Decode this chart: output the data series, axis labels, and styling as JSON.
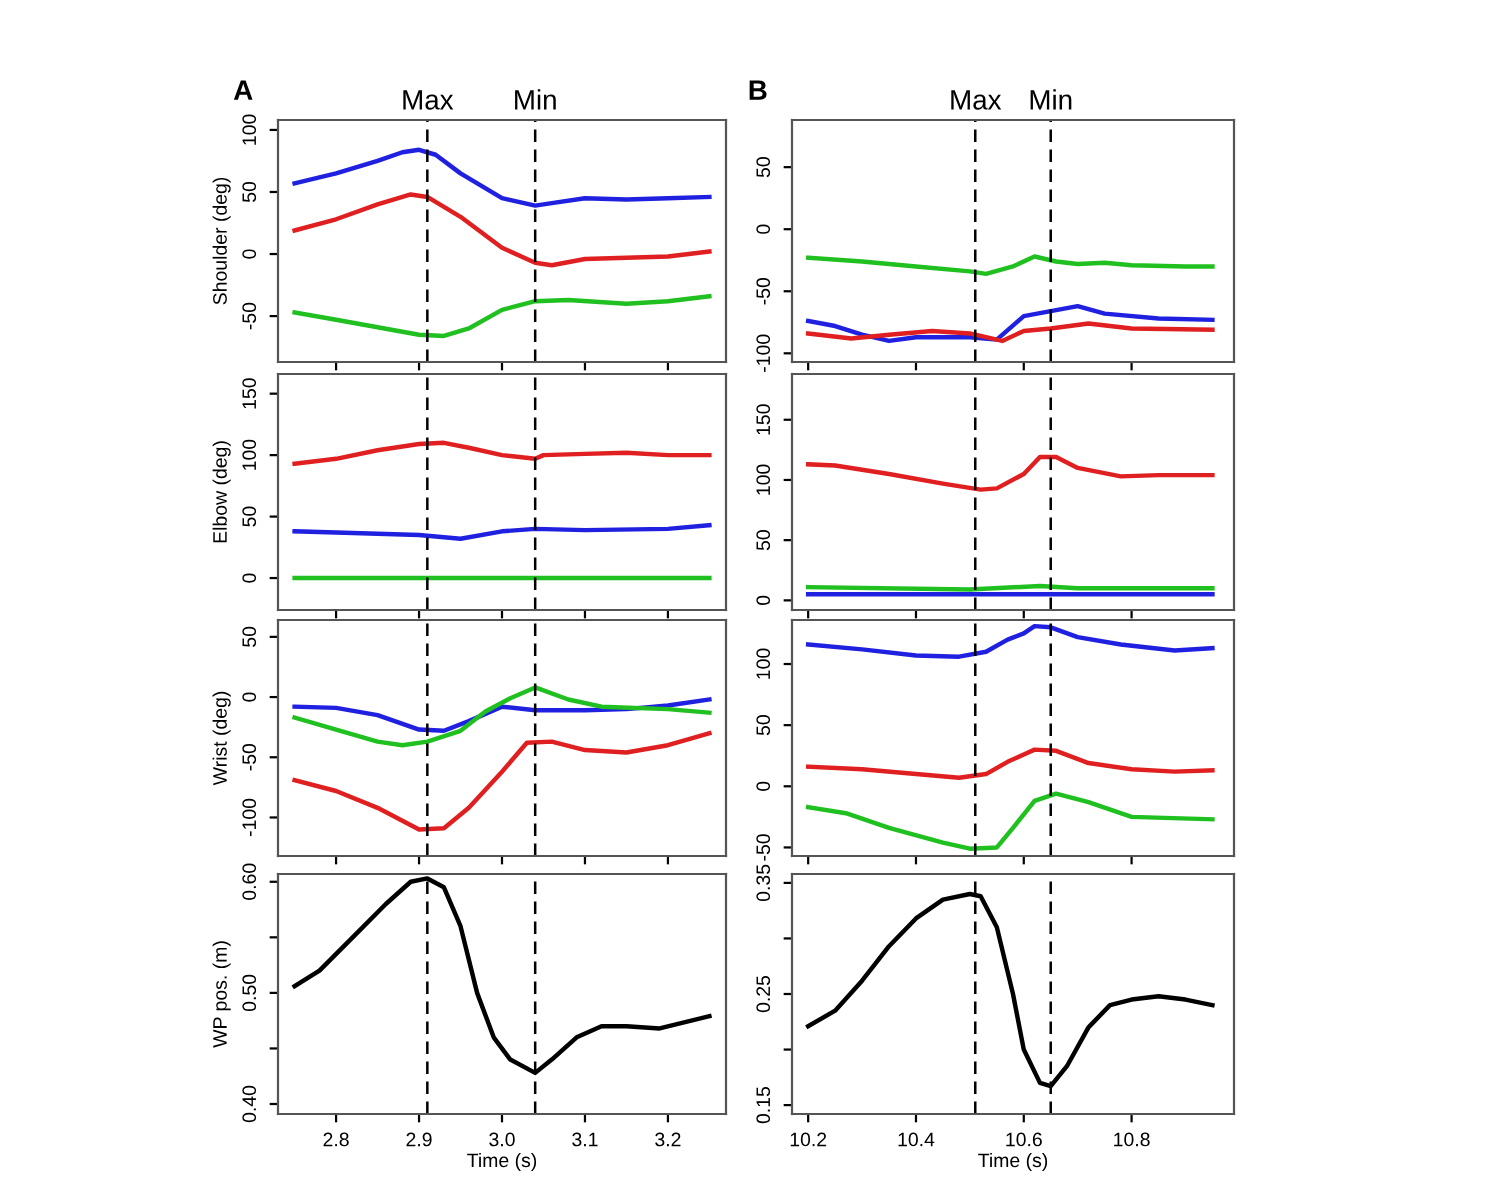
{
  "chart_data": [
    {
      "type": "line",
      "title": "A",
      "ylabel": "Shoulder (deg)",
      "xlim": [
        2.73,
        3.27
      ],
      "xticks": [
        2.8,
        2.9,
        3.0,
        3.1,
        3.2
      ],
      "ylim": [
        -87,
        108
      ],
      "yticks": [
        -50,
        0,
        50,
        100
      ],
      "tick_labels": "y",
      "grid": false,
      "line_style": "solid",
      "ref_lines": [
        {
          "axis": "x",
          "value": 2.91,
          "label": "Max",
          "line_style": "dashed",
          "color": "#000000"
        },
        {
          "axis": "x",
          "value": 3.04,
          "label": "Min",
          "line_style": "dashed",
          "color": "#000000"
        }
      ],
      "series": [
        {
          "color": "#2020e0",
          "x": [
            2.75,
            2.8,
            2.85,
            2.88,
            2.9,
            2.92,
            2.95,
            3.0,
            3.04,
            3.06,
            3.1,
            3.15,
            3.2,
            3.25
          ],
          "values": [
            57,
            65,
            75,
            82,
            84,
            80,
            65,
            45,
            39,
            41,
            45,
            44,
            45,
            46
          ]
        },
        {
          "color": "#e02020",
          "x": [
            2.75,
            2.8,
            2.85,
            2.89,
            2.91,
            2.95,
            3.0,
            3.04,
            3.06,
            3.1,
            3.15,
            3.2,
            3.25
          ],
          "values": [
            19,
            28,
            40,
            48,
            46,
            30,
            5,
            -7,
            -9,
            -4,
            -3,
            -2,
            2
          ]
        },
        {
          "color": "#20c020",
          "x": [
            2.75,
            2.8,
            2.85,
            2.9,
            2.93,
            2.96,
            3.0,
            3.04,
            3.08,
            3.15,
            3.2,
            3.25
          ],
          "values": [
            -47,
            -53,
            -59,
            -65,
            -66,
            -60,
            -45,
            -38,
            -37,
            -40,
            -38,
            -34
          ]
        }
      ]
    },
    {
      "type": "line",
      "ylabel": "Elbow (deg)",
      "xlim": [
        2.73,
        3.27
      ],
      "xticks": [
        2.8,
        2.9,
        3.0,
        3.1,
        3.2
      ],
      "ylim": [
        -26,
        166
      ],
      "yticks": [
        0,
        50,
        100,
        150
      ],
      "tick_labels": "y",
      "grid": false,
      "line_style": "solid",
      "ref_lines": [
        {
          "axis": "x",
          "value": 2.91,
          "line_style": "dashed",
          "color": "#000000"
        },
        {
          "axis": "x",
          "value": 3.04,
          "line_style": "dashed",
          "color": "#000000"
        }
      ],
      "series": [
        {
          "color": "#e02020",
          "x": [
            2.75,
            2.8,
            2.85,
            2.9,
            2.93,
            2.96,
            3.0,
            3.04,
            3.05,
            3.1,
            3.15,
            3.2,
            3.25
          ],
          "values": [
            93,
            97,
            104,
            109,
            110,
            106,
            100,
            97,
            100,
            101,
            102,
            100,
            100
          ]
        },
        {
          "color": "#2020e0",
          "x": [
            2.75,
            2.8,
            2.85,
            2.9,
            2.95,
            3.0,
            3.04,
            3.1,
            3.2,
            3.25
          ],
          "values": [
            38,
            37,
            36,
            35,
            32,
            38,
            40,
            39,
            40,
            43
          ]
        },
        {
          "color": "#20c020",
          "x": [
            2.75,
            3.25
          ],
          "values": [
            0,
            0
          ]
        }
      ]
    },
    {
      "type": "line",
      "ylabel": "Wrist (deg)",
      "xlim": [
        2.73,
        3.27
      ],
      "xticks": [
        2.8,
        2.9,
        3.0,
        3.1,
        3.2
      ],
      "ylim": [
        -132,
        64
      ],
      "yticks": [
        -100,
        -50,
        0,
        50
      ],
      "tick_labels": "y",
      "grid": false,
      "line_style": "solid",
      "ref_lines": [
        {
          "axis": "x",
          "value": 2.91,
          "line_style": "dashed",
          "color": "#000000"
        },
        {
          "axis": "x",
          "value": 3.04,
          "line_style": "dashed",
          "color": "#000000"
        }
      ],
      "series": [
        {
          "color": "#2020e0",
          "x": [
            2.75,
            2.8,
            2.85,
            2.9,
            2.93,
            2.96,
            3.0,
            3.04,
            3.1,
            3.15,
            3.2,
            3.25
          ],
          "values": [
            -8,
            -9,
            -15,
            -27,
            -28,
            -20,
            -8,
            -11,
            -11,
            -10,
            -7,
            -2
          ]
        },
        {
          "color": "#20c020",
          "x": [
            2.75,
            2.8,
            2.85,
            2.88,
            2.91,
            2.95,
            2.98,
            3.01,
            3.04,
            3.08,
            3.12,
            3.2,
            3.25
          ],
          "values": [
            -17,
            -27,
            -37,
            -40,
            -37,
            -28,
            -12,
            -1,
            8,
            -2,
            -8,
            -10,
            -13
          ]
        },
        {
          "color": "#e02020",
          "x": [
            2.75,
            2.8,
            2.85,
            2.9,
            2.93,
            2.96,
            3.0,
            3.03,
            3.06,
            3.1,
            3.15,
            3.2,
            3.25
          ],
          "values": [
            -69,
            -78,
            -92,
            -110,
            -109,
            -92,
            -62,
            -38,
            -37,
            -44,
            -46,
            -40,
            -30
          ]
        }
      ]
    },
    {
      "type": "line",
      "ylabel": "WP pos. (m)",
      "xlabel": "Time (s)",
      "xlim": [
        2.73,
        3.27
      ],
      "xticks": [
        2.8,
        2.9,
        {
          "value": 3,
          "label": "3.0"
        },
        3.1,
        3.2
      ],
      "ylim": [
        0.391,
        0.607
      ],
      "yticks": [
        {
          "value": 0.4,
          "label": "0.40"
        },
        {
          "value": 0.45,
          "label": null
        },
        {
          "value": 0.5,
          "label": "0.50"
        },
        {
          "value": 0.55,
          "label": null
        },
        {
          "value": 0.6,
          "label": "0.60"
        }
      ],
      "grid": false,
      "line_style": "solid",
      "ref_lines": [
        {
          "axis": "x",
          "value": 2.91,
          "line_style": "dashed",
          "color": "#000000"
        },
        {
          "axis": "x",
          "value": 3.04,
          "line_style": "dashed",
          "color": "#000000"
        }
      ],
      "series": [
        {
          "color": "#000000",
          "x": [
            2.75,
            2.78,
            2.82,
            2.86,
            2.89,
            2.91,
            2.93,
            2.95,
            2.97,
            2.99,
            3.01,
            3.04,
            3.06,
            3.09,
            3.12,
            3.15,
            3.19,
            3.25
          ],
          "values": [
            0.506,
            0.52,
            0.55,
            0.58,
            0.6,
            0.603,
            0.595,
            0.56,
            0.5,
            0.46,
            0.44,
            0.428,
            0.44,
            0.46,
            0.47,
            0.47,
            0.468,
            0.479
          ]
        }
      ]
    },
    {
      "type": "line",
      "title": "B",
      "xlim": [
        10.17,
        10.99
      ],
      "xticks": [
        10.2,
        10.4,
        10.6,
        10.8
      ],
      "ylim": [
        -107,
        88
      ],
      "yticks": [
        -100,
        -50,
        0,
        50
      ],
      "tick_labels": "y",
      "grid": false,
      "line_style": "solid",
      "ref_lines": [
        {
          "axis": "x",
          "value": 10.51,
          "label": "Max",
          "line_style": "dashed",
          "color": "#000000"
        },
        {
          "axis": "x",
          "value": 10.65,
          "label": "Min",
          "line_style": "dashed",
          "color": "#000000"
        }
      ],
      "series": [
        {
          "color": "#20c020",
          "x": [
            10.2,
            10.3,
            10.4,
            10.5,
            10.53,
            10.58,
            10.62,
            10.66,
            10.7,
            10.75,
            10.8,
            10.9,
            10.95
          ],
          "values": [
            -23,
            -26,
            -30,
            -34,
            -36,
            -30,
            -22,
            -26,
            -28,
            -27,
            -29,
            -30,
            -30
          ]
        },
        {
          "color": "#2020e0",
          "x": [
            10.2,
            10.25,
            10.3,
            10.35,
            10.4,
            10.5,
            10.55,
            10.6,
            10.65,
            10.7,
            10.75,
            10.85,
            10.95
          ],
          "values": [
            -74,
            -78,
            -85,
            -90,
            -87,
            -87,
            -89,
            -70,
            -66,
            -62,
            -68,
            -72,
            -73
          ]
        },
        {
          "color": "#e02020",
          "x": [
            10.2,
            10.28,
            10.35,
            10.43,
            10.5,
            10.56,
            10.6,
            10.65,
            10.72,
            10.8,
            10.95
          ],
          "values": [
            -84,
            -88,
            -85,
            -82,
            -84,
            -90,
            -82,
            -80,
            -76,
            -80,
            -81
          ]
        }
      ]
    },
    {
      "type": "line",
      "xlim": [
        10.17,
        10.99
      ],
      "xticks": [
        10.2,
        10.4,
        10.6,
        10.8
      ],
      "ylim": [
        -8,
        188
      ],
      "yticks": [
        0,
        50,
        100,
        150
      ],
      "tick_labels": "y",
      "grid": false,
      "line_style": "solid",
      "ref_lines": [
        {
          "axis": "x",
          "value": 10.51,
          "line_style": "dashed",
          "color": "#000000"
        },
        {
          "axis": "x",
          "value": 10.65,
          "line_style": "dashed",
          "color": "#000000"
        }
      ],
      "series": [
        {
          "color": "#e02020",
          "x": [
            10.2,
            10.25,
            10.35,
            10.45,
            10.52,
            10.55,
            10.6,
            10.63,
            10.66,
            10.7,
            10.78,
            10.85,
            10.95
          ],
          "values": [
            113,
            112,
            105,
            97,
            92,
            93,
            105,
            119,
            119,
            110,
            103,
            104,
            104
          ]
        },
        {
          "color": "#20c020",
          "x": [
            10.2,
            10.5,
            10.63,
            10.7,
            10.95
          ],
          "values": [
            11,
            9,
            12,
            10,
            10
          ]
        },
        {
          "color": "#2020e0",
          "x": [
            10.2,
            10.95
          ],
          "values": [
            5,
            5
          ]
        }
      ]
    },
    {
      "type": "line",
      "xlim": [
        10.17,
        10.99
      ],
      "xticks": [
        10.2,
        10.4,
        10.6,
        10.8
      ],
      "ylim": [
        -57,
        136
      ],
      "yticks": [
        -50,
        0,
        50,
        100
      ],
      "tick_labels": "y",
      "grid": false,
      "line_style": "solid",
      "ref_lines": [
        {
          "axis": "x",
          "value": 10.51,
          "line_style": "dashed",
          "color": "#000000"
        },
        {
          "axis": "x",
          "value": 10.65,
          "line_style": "dashed",
          "color": "#000000"
        }
      ],
      "series": [
        {
          "color": "#2020e0",
          "x": [
            10.2,
            10.3,
            10.4,
            10.48,
            10.53,
            10.57,
            10.6,
            10.62,
            10.65,
            10.7,
            10.78,
            10.88,
            10.95
          ],
          "values": [
            116,
            112,
            107,
            106,
            110,
            120,
            125,
            131,
            130,
            122,
            116,
            111,
            113
          ]
        },
        {
          "color": "#e02020",
          "x": [
            10.2,
            10.3,
            10.4,
            10.48,
            10.53,
            10.57,
            10.6,
            10.62,
            10.66,
            10.72,
            10.8,
            10.88,
            10.95
          ],
          "values": [
            16,
            14,
            10,
            7,
            10,
            20,
            26,
            30,
            29,
            19,
            14,
            12,
            13
          ]
        },
        {
          "color": "#20c020",
          "x": [
            10.2,
            10.27,
            10.35,
            10.45,
            10.5,
            10.55,
            10.58,
            10.62,
            10.66,
            10.72,
            10.8,
            10.95
          ],
          "values": [
            -17,
            -22,
            -34,
            -46,
            -51,
            -50,
            -34,
            -12,
            -6,
            -13,
            -25,
            -27
          ]
        }
      ]
    },
    {
      "type": "line",
      "xlabel": "Time (s)",
      "xlim": [
        10.17,
        10.99
      ],
      "xticks": [
        10.2,
        10.4,
        10.6,
        10.8
      ],
      "ylim": [
        0.142,
        0.358
      ],
      "yticks": [
        0.15,
        {
          "value": 0.2,
          "label": null
        },
        0.25,
        {
          "value": 0.3,
          "label": null
        },
        0.35
      ],
      "grid": false,
      "line_style": "solid",
      "ref_lines": [
        {
          "axis": "x",
          "value": 10.51,
          "line_style": "dashed",
          "color": "#000000"
        },
        {
          "axis": "x",
          "value": 10.65,
          "line_style": "dashed",
          "color": "#000000"
        }
      ],
      "series": [
        {
          "color": "#000000",
          "x": [
            10.2,
            10.25,
            10.3,
            10.35,
            10.4,
            10.45,
            10.5,
            10.52,
            10.55,
            10.58,
            10.6,
            10.63,
            10.65,
            10.68,
            10.72,
            10.76,
            10.8,
            10.85,
            10.9,
            10.95
          ],
          "values": [
            0.221,
            0.235,
            0.262,
            0.293,
            0.318,
            0.335,
            0.34,
            0.338,
            0.31,
            0.25,
            0.2,
            0.17,
            0.167,
            0.185,
            0.22,
            0.24,
            0.245,
            0.248,
            0.245,
            0.24
          ]
        }
      ]
    }
  ]
}
